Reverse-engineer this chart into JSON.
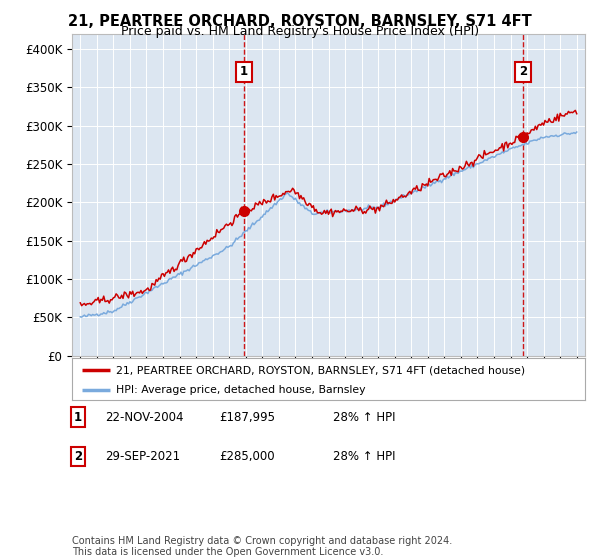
{
  "title": "21, PEARTREE ORCHARD, ROYSTON, BARNSLEY, S71 4FT",
  "subtitle": "Price paid vs. HM Land Registry's House Price Index (HPI)",
  "footer": "Contains HM Land Registry data © Crown copyright and database right 2024.\nThis data is licensed under the Open Government Licence v3.0.",
  "legend_property": "21, PEARTREE ORCHARD, ROYSTON, BARNSLEY, S71 4FT (detached house)",
  "legend_hpi": "HPI: Average price, detached house, Barnsley",
  "sale1_date": "22-NOV-2004",
  "sale1_price": "£187,995",
  "sale1_hpi": "28% ↑ HPI",
  "sale1_year": 2004.9,
  "sale2_date": "29-SEP-2021",
  "sale2_price": "£285,000",
  "sale2_hpi": "28% ↑ HPI",
  "sale2_year": 2021.75,
  "ylim": [
    0,
    420000
  ],
  "xlim": [
    1994.5,
    2025.5
  ],
  "yticks": [
    0,
    50000,
    100000,
    150000,
    200000,
    250000,
    300000,
    350000,
    400000
  ],
  "ytick_labels": [
    "£0",
    "£50K",
    "£100K",
    "£150K",
    "£200K",
    "£250K",
    "£300K",
    "£350K",
    "£400K"
  ],
  "xticks": [
    1995,
    1996,
    1997,
    1998,
    1999,
    2000,
    2001,
    2002,
    2003,
    2004,
    2005,
    2006,
    2007,
    2008,
    2009,
    2010,
    2011,
    2012,
    2013,
    2014,
    2015,
    2016,
    2017,
    2018,
    2019,
    2020,
    2021,
    2022,
    2023,
    2024,
    2025
  ],
  "bg_color": "#dce6f1",
  "line_color_property": "#cc0000",
  "line_color_hpi": "#7aaadd",
  "marker_color_property": "#cc0000",
  "vline_color": "#cc0000",
  "grid_color": "#ffffff",
  "sale1_marker_value": 187995,
  "sale2_marker_value": 285000
}
